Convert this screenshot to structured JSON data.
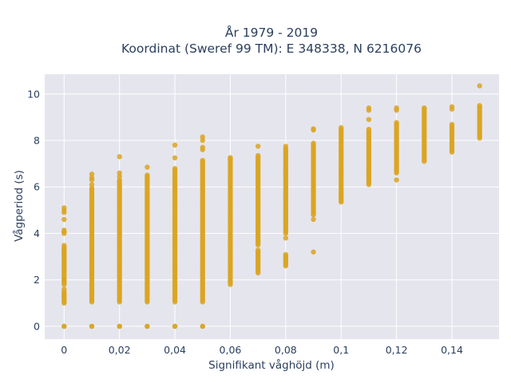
{
  "chart_data": {
    "type": "scatter",
    "title": "År 1979 - 2019",
    "subtitle": "Koordinat (Sweref 99 TM): E 348338, N 6216076",
    "xlabel": "Signifikant våghöjd (m)",
    "ylabel": "Vågperiod (s)",
    "xlim": [
      -0.007,
      0.157
    ],
    "ylim": [
      -0.55,
      10.85
    ],
    "grid": true,
    "marker_color": "#DAA520",
    "background_color": "#E5E5EE",
    "x_ticks": [
      0,
      0.02,
      0.04,
      0.06,
      0.08,
      0.1,
      0.12,
      0.14
    ],
    "x_tick_labels": [
      "0",
      "0,02",
      "0,04",
      "0,06",
      "0,08",
      "0,1",
      "0,12",
      "0,14"
    ],
    "y_ticks": [
      0,
      2,
      4,
      6,
      8,
      10
    ],
    "y_tick_labels": [
      "0",
      "2",
      "4",
      "6",
      "8",
      "10"
    ],
    "columns": [
      {
        "x": 0.0,
        "continuous": [
          [
            1.0,
            1.5
          ],
          [
            1.8,
            3.5
          ],
          [
            4.0,
            4.2
          ]
        ],
        "points": [
          0,
          0,
          1.1,
          1.3,
          1.6,
          2.0,
          2.4,
          2.8,
          3.1,
          3.3,
          4.6,
          4.9,
          5.0,
          5.1
        ]
      },
      {
        "x": 0.01,
        "continuous": [
          [
            1.05,
            6.0
          ]
        ],
        "points": [
          0,
          0,
          6.1,
          6.3,
          6.4,
          6.55
        ]
      },
      {
        "x": 0.02,
        "continuous": [
          [
            1.05,
            6.3
          ]
        ],
        "points": [
          0,
          0,
          6.45,
          6.6,
          7.3
        ]
      },
      {
        "x": 0.03,
        "continuous": [
          [
            1.05,
            6.55
          ]
        ],
        "points": [
          0,
          0,
          6.85
        ]
      },
      {
        "x": 0.04,
        "continuous": [
          [
            1.05,
            6.8
          ]
        ],
        "points": [
          0,
          0,
          7.25,
          7.8
        ]
      },
      {
        "x": 0.05,
        "continuous": [
          [
            1.05,
            7.2
          ]
        ],
        "points": [
          0,
          0,
          7.6,
          7.7,
          8.0,
          8.15
        ]
      },
      {
        "x": 0.06,
        "continuous": [
          [
            1.8,
            7.3
          ]
        ],
        "points": [
          7.2
        ]
      },
      {
        "x": 0.07,
        "continuous": [
          [
            2.3,
            3.3
          ],
          [
            3.5,
            7.4
          ]
        ],
        "points": [
          7.75
        ]
      },
      {
        "x": 0.08,
        "continuous": [
          [
            2.6,
            3.1
          ],
          [
            4.0,
            7.7
          ]
        ],
        "points": [
          3.8,
          7.75
        ]
      },
      {
        "x": 0.09,
        "continuous": [
          [
            4.8,
            7.9
          ]
        ],
        "points": [
          3.2,
          4.6,
          8.45,
          8.5
        ]
      },
      {
        "x": 0.1,
        "continuous": [
          [
            5.4,
            8.6
          ]
        ],
        "points": [
          5.35
        ]
      },
      {
        "x": 0.11,
        "continuous": [
          [
            6.1,
            8.5
          ]
        ],
        "points": [
          8.9,
          9.3,
          9.4
        ]
      },
      {
        "x": 0.12,
        "continuous": [
          [
            6.6,
            8.8
          ]
        ],
        "points": [
          6.3,
          9.3,
          9.4
        ]
      },
      {
        "x": 0.13,
        "continuous": [
          [
            7.1,
            9.3
          ]
        ],
        "points": [
          9.35,
          9.4
        ]
      },
      {
        "x": 0.14,
        "continuous": [
          [
            7.5,
            8.7
          ]
        ],
        "points": [
          9.35,
          9.45
        ]
      },
      {
        "x": 0.15,
        "continuous": [
          [
            8.1,
            9.5
          ]
        ],
        "points": [
          10.35
        ]
      }
    ]
  }
}
